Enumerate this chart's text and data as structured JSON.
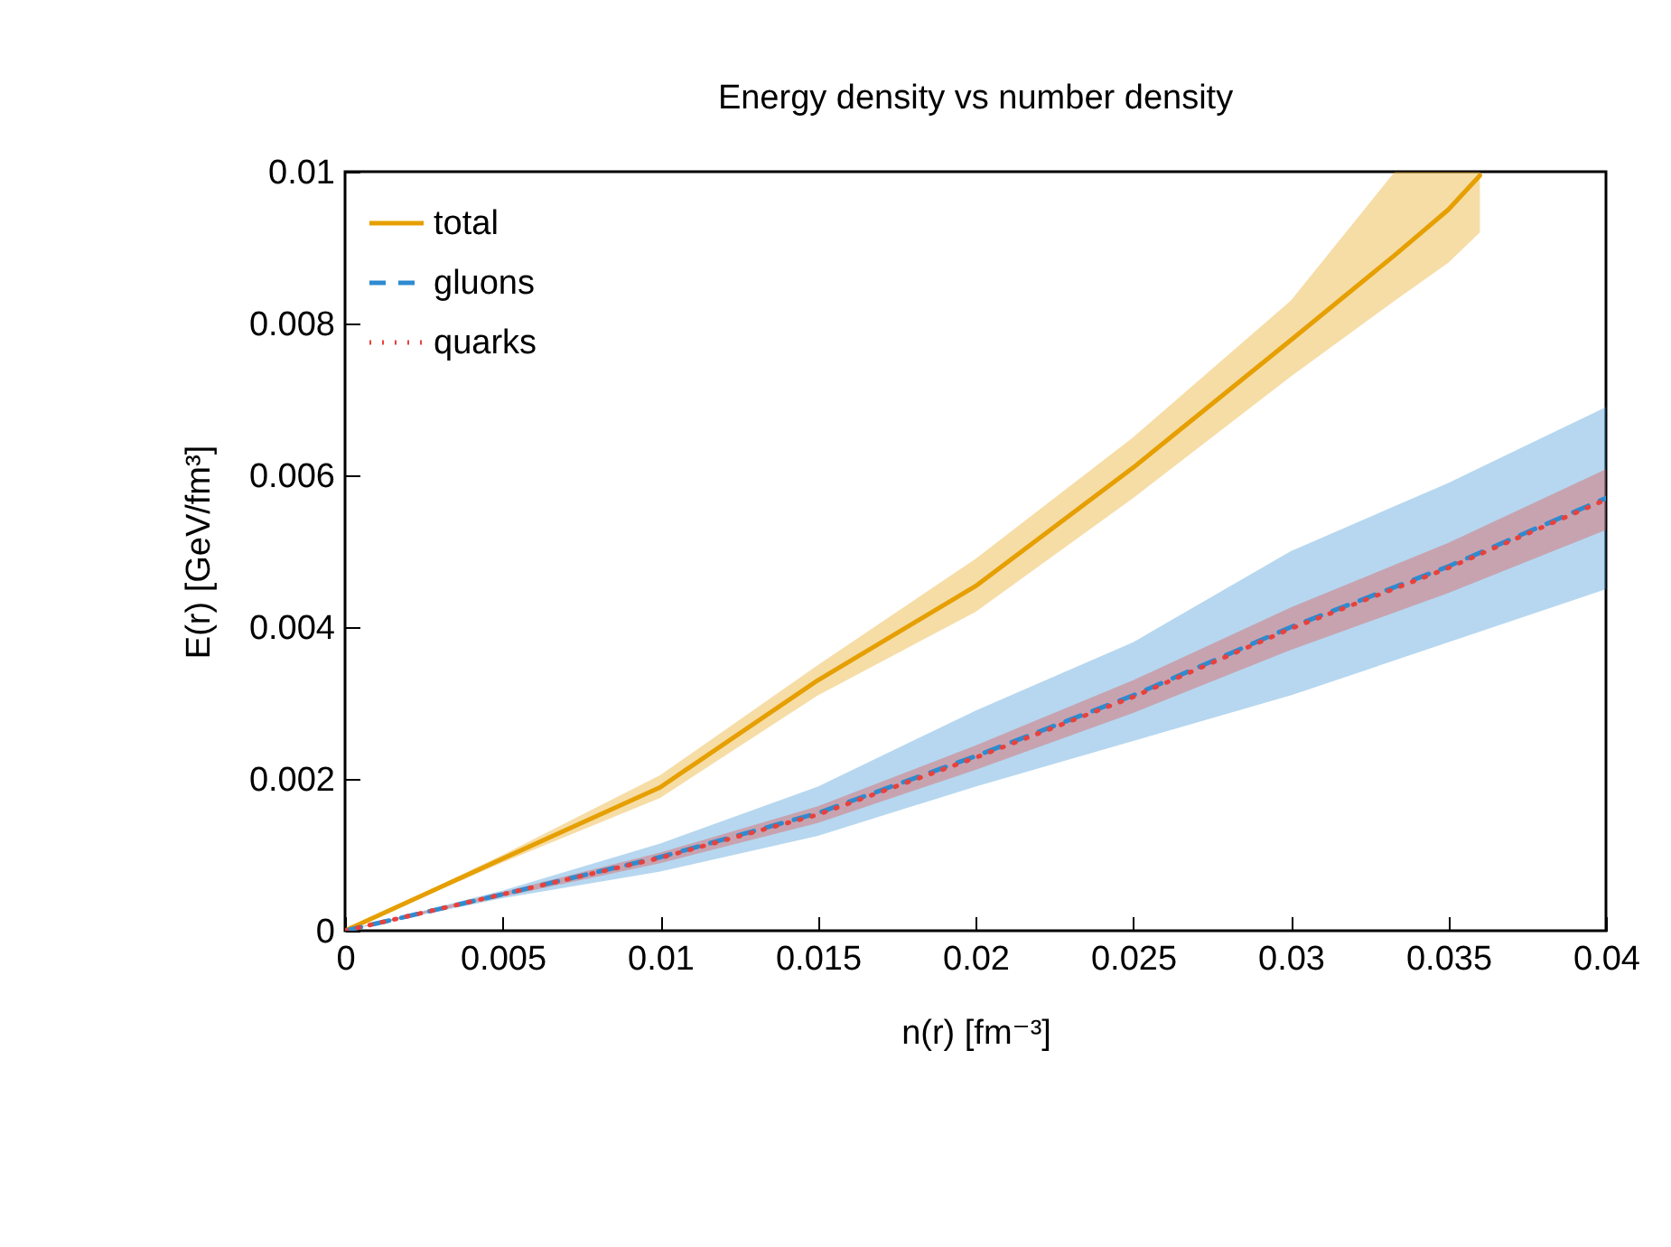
{
  "chart_data": {
    "type": "line",
    "title": "Energy density vs number density",
    "xlabel": "n(r) [fm⁻³]",
    "ylabel": "E(r) [GeV/fm³]",
    "xlim": [
      0,
      0.04
    ],
    "xticks": [
      0,
      0.005,
      0.01,
      0.015,
      0.02,
      0.025,
      0.03,
      0.035,
      0.04
    ],
    "ylim": [
      0,
      0.01
    ],
    "yticks": [
      0,
      0.002,
      0.004,
      0.006,
      0.008,
      0.01
    ],
    "legend": "top left",
    "grid": false,
    "marker": "none",
    "series": [
      {
        "name": "total",
        "color": "#e69f00",
        "line_style": "solid",
        "x": [
          0,
          0.005,
          0.01,
          0.015,
          0.02,
          0.025,
          0.03,
          0.0333,
          0.035,
          0.036
        ],
        "values": [
          0,
          0.00095,
          0.00189,
          0.0033,
          0.00454,
          0.0061,
          0.00778,
          0.0089,
          0.0095,
          0.00995
        ],
        "lower": [
          0,
          0.0009,
          0.00175,
          0.0031,
          0.0042,
          0.0057,
          0.0073,
          0.0083,
          0.0088,
          0.0092
        ],
        "upper": [
          0,
          0.001,
          0.00205,
          0.0035,
          0.0049,
          0.0065,
          0.0083,
          0.01,
          0.01,
          0.01
        ]
      },
      {
        "name": "gluons",
        "color": "#2e8bd0",
        "line_style": "dashed",
        "x": [
          0,
          0.005,
          0.01,
          0.015,
          0.02,
          0.025,
          0.03,
          0.035,
          0.04
        ],
        "values": [
          0,
          0.00048,
          0.00097,
          0.00155,
          0.0023,
          0.0031,
          0.004,
          0.0048,
          0.0057
        ],
        "lower": [
          0,
          0.00043,
          0.00078,
          0.00125,
          0.0019,
          0.0025,
          0.0031,
          0.0038,
          0.0045
        ],
        "upper": [
          0,
          0.00053,
          0.00115,
          0.0019,
          0.0029,
          0.0038,
          0.005,
          0.0059,
          0.0069
        ]
      },
      {
        "name": "quarks",
        "color": "#e8413c",
        "line_style": "dotted",
        "x": [
          0,
          0.005,
          0.01,
          0.015,
          0.02,
          0.025,
          0.03,
          0.035,
          0.04
        ],
        "values": [
          0,
          0.00048,
          0.00096,
          0.00153,
          0.00228,
          0.00308,
          0.00398,
          0.00478,
          0.00568
        ],
        "lower": [
          0,
          0.00045,
          0.00089,
          0.00142,
          0.00212,
          0.00287,
          0.0037,
          0.00445,
          0.00528
        ],
        "upper": [
          0,
          0.00051,
          0.00103,
          0.00164,
          0.00244,
          0.0033,
          0.00426,
          0.00511,
          0.00608
        ]
      }
    ]
  }
}
